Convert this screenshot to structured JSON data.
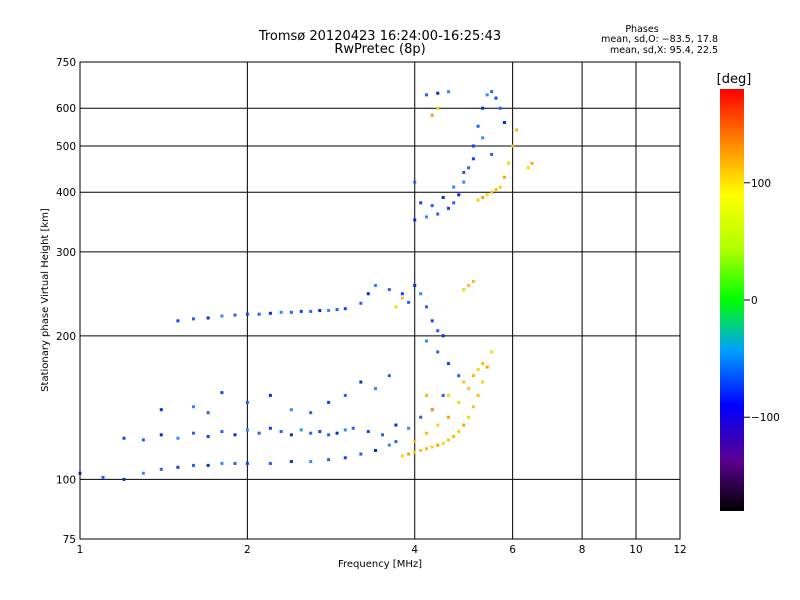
{
  "chart_data": {
    "type": "scatter",
    "title": "Tromsø 20120423 16:24:00-16:25:43",
    "subtitle": "RwPretec (8p)",
    "xlabel": "Frequency [MHz]",
    "ylabel": "Stationary phase Virtual Height [km]",
    "x_scale": "log",
    "y_scale": "log",
    "xlim": [
      1,
      12
    ],
    "ylim": [
      75,
      750
    ],
    "x_ticks": [
      1,
      2,
      4,
      6,
      8,
      10,
      12
    ],
    "x_tick_labels": [
      "1",
      "2",
      "4",
      "6",
      "8",
      "10",
      "12"
    ],
    "y_ticks": [
      75,
      100,
      200,
      300,
      400,
      500,
      600,
      750
    ],
    "y_tick_labels": [
      "75",
      "100",
      "200",
      "300",
      "400",
      "500",
      "600",
      "750"
    ],
    "grid": true,
    "phases_box": {
      "heading": "Phases",
      "line1": "mean, sd,O: −83.5, 17.8",
      "line2": "mean, sd,X:  95.4, 22.5"
    },
    "colorbar": {
      "label": "[deg]",
      "min": -180,
      "max": 180,
      "ticks": [
        100,
        0,
        -100
      ],
      "tick_labels": [
        "100",
        "0",
        "−100"
      ]
    },
    "series": [
      {
        "phase_mode": "O",
        "points": [
          [
            1.0,
            103
          ],
          [
            1.1,
            101
          ],
          [
            1.2,
            100
          ],
          [
            1.3,
            103
          ],
          [
            1.4,
            105
          ],
          [
            1.5,
            106
          ],
          [
            1.6,
            107
          ],
          [
            1.7,
            107
          ],
          [
            1.8,
            108
          ],
          [
            1.9,
            108
          ],
          [
            2.0,
            108
          ],
          [
            2.2,
            108
          ],
          [
            2.4,
            109
          ],
          [
            2.6,
            109
          ],
          [
            2.8,
            110
          ],
          [
            3.0,
            111
          ],
          [
            3.2,
            113
          ],
          [
            3.4,
            115
          ],
          [
            3.6,
            118
          ],
          [
            3.7,
            120
          ],
          [
            1.2,
            122
          ],
          [
            1.3,
            121
          ],
          [
            1.4,
            124
          ],
          [
            1.5,
            122
          ],
          [
            1.6,
            125
          ],
          [
            1.7,
            123
          ],
          [
            1.8,
            126
          ],
          [
            1.9,
            124
          ],
          [
            2.0,
            127
          ],
          [
            2.1,
            125
          ],
          [
            2.2,
            128
          ],
          [
            2.3,
            126
          ],
          [
            2.4,
            124
          ],
          [
            2.5,
            127
          ],
          [
            2.6,
            125
          ],
          [
            2.7,
            126
          ],
          [
            2.8,
            124
          ],
          [
            2.9,
            125
          ],
          [
            3.0,
            127
          ],
          [
            3.1,
            128
          ],
          [
            3.3,
            126
          ],
          [
            3.5,
            124
          ],
          [
            3.7,
            130
          ],
          [
            3.9,
            128
          ],
          [
            4.1,
            135
          ],
          [
            4.3,
            140
          ],
          [
            4.5,
            150
          ],
          [
            1.4,
            140
          ],
          [
            1.6,
            142
          ],
          [
            1.7,
            138
          ],
          [
            1.8,
            152
          ],
          [
            2.0,
            145
          ],
          [
            2.2,
            150
          ],
          [
            2.4,
            140
          ],
          [
            2.6,
            138
          ],
          [
            2.8,
            145
          ],
          [
            3.0,
            150
          ],
          [
            3.2,
            160
          ],
          [
            3.4,
            155
          ],
          [
            3.6,
            165
          ],
          [
            1.5,
            215
          ],
          [
            1.6,
            217
          ],
          [
            1.7,
            218
          ],
          [
            1.8,
            220
          ],
          [
            1.9,
            221
          ],
          [
            2.0,
            222
          ],
          [
            2.1,
            222
          ],
          [
            2.2,
            223
          ],
          [
            2.3,
            224
          ],
          [
            2.4,
            224
          ],
          [
            2.5,
            225
          ],
          [
            2.6,
            225
          ],
          [
            2.7,
            226
          ],
          [
            2.8,
            226
          ],
          [
            2.9,
            227
          ],
          [
            3.0,
            228
          ],
          [
            3.2,
            234
          ],
          [
            3.3,
            245
          ],
          [
            3.4,
            255
          ],
          [
            3.6,
            250
          ],
          [
            3.8,
            245
          ],
          [
            3.9,
            235
          ],
          [
            4.0,
            255
          ],
          [
            4.1,
            245
          ],
          [
            4.2,
            230
          ],
          [
            4.3,
            215
          ],
          [
            4.4,
            205
          ],
          [
            4.5,
            200
          ],
          [
            4.2,
            195
          ],
          [
            4.4,
            185
          ],
          [
            4.6,
            175
          ],
          [
            4.8,
            165
          ],
          [
            4.0,
            350
          ],
          [
            4.2,
            355
          ],
          [
            4.4,
            360
          ],
          [
            4.6,
            370
          ],
          [
            4.7,
            380
          ],
          [
            4.8,
            395
          ],
          [
            4.9,
            420
          ],
          [
            5.0,
            450
          ],
          [
            5.1,
            500
          ],
          [
            5.2,
            550
          ],
          [
            5.3,
            600
          ],
          [
            5.4,
            640
          ],
          [
            5.5,
            650
          ],
          [
            5.6,
            630
          ],
          [
            5.7,
            600
          ],
          [
            5.8,
            560
          ],
          [
            5.3,
            520
          ],
          [
            5.5,
            480
          ],
          [
            4.1,
            380
          ],
          [
            4.3,
            375
          ],
          [
            4.5,
            390
          ],
          [
            4.7,
            410
          ],
          [
            4.9,
            440
          ],
          [
            5.1,
            470
          ],
          [
            4.2,
            640
          ],
          [
            4.4,
            645
          ],
          [
            4.6,
            650
          ],
          [
            4.0,
            420
          ]
        ]
      },
      {
        "phase_mode": "X",
        "points": [
          [
            3.8,
            112
          ],
          [
            3.9,
            113
          ],
          [
            4.0,
            114
          ],
          [
            4.1,
            115
          ],
          [
            4.2,
            116
          ],
          [
            4.3,
            117
          ],
          [
            4.4,
            118
          ],
          [
            4.5,
            119
          ],
          [
            4.6,
            121
          ],
          [
            4.7,
            123
          ],
          [
            4.8,
            126
          ],
          [
            4.9,
            130
          ],
          [
            5.0,
            135
          ],
          [
            5.1,
            142
          ],
          [
            5.2,
            150
          ],
          [
            5.3,
            160
          ],
          [
            5.4,
            172
          ],
          [
            5.5,
            185
          ],
          [
            4.0,
            120
          ],
          [
            4.2,
            125
          ],
          [
            4.4,
            130
          ],
          [
            4.6,
            135
          ],
          [
            4.8,
            145
          ],
          [
            5.0,
            155
          ],
          [
            5.1,
            165
          ],
          [
            5.2,
            170
          ],
          [
            4.3,
            140
          ],
          [
            4.6,
            150
          ],
          [
            4.9,
            160
          ],
          [
            5.3,
            175
          ],
          [
            5.2,
            385
          ],
          [
            5.3,
            390
          ],
          [
            5.4,
            395
          ],
          [
            5.5,
            400
          ],
          [
            5.6,
            405
          ],
          [
            5.7,
            410
          ],
          [
            5.8,
            430
          ],
          [
            5.9,
            460
          ],
          [
            6.0,
            500
          ],
          [
            6.1,
            540
          ],
          [
            6.4,
            450
          ],
          [
            6.5,
            460
          ],
          [
            4.9,
            250
          ],
          [
            5.0,
            255
          ],
          [
            5.1,
            260
          ],
          [
            4.4,
            600
          ],
          [
            4.3,
            580
          ],
          [
            3.7,
            230
          ],
          [
            3.8,
            240
          ],
          [
            4.2,
            150
          ]
        ]
      }
    ]
  }
}
